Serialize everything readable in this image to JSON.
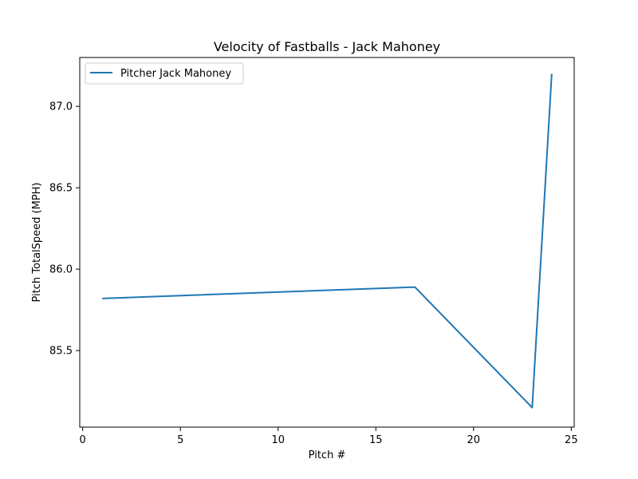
{
  "chart_data": {
    "type": "line",
    "title": "Velocity of Fastballs - Jack Mahoney",
    "xlabel": "Pitch #",
    "ylabel": "Pitch TotalSpeed (MPH)",
    "xlim": [
      -0.15,
      25.15
    ],
    "ylim": [
      85.03,
      87.3
    ],
    "xticks": [
      0,
      5,
      10,
      15,
      20,
      25
    ],
    "yticks": [
      85.5,
      86.0,
      86.5,
      87.0
    ],
    "xtick_labels": [
      "0",
      "5",
      "10",
      "15",
      "20",
      "25"
    ],
    "ytick_labels": [
      "85.5",
      "86.0",
      "86.5",
      "87.0"
    ],
    "grid": false,
    "legend_position": "top-left",
    "series": [
      {
        "name": "Pitcher Jack Mahoney",
        "color": "#1f77b4",
        "x": [
          1,
          17,
          23,
          24
        ],
        "y": [
          85.82,
          85.89,
          85.15,
          87.2
        ]
      }
    ]
  }
}
